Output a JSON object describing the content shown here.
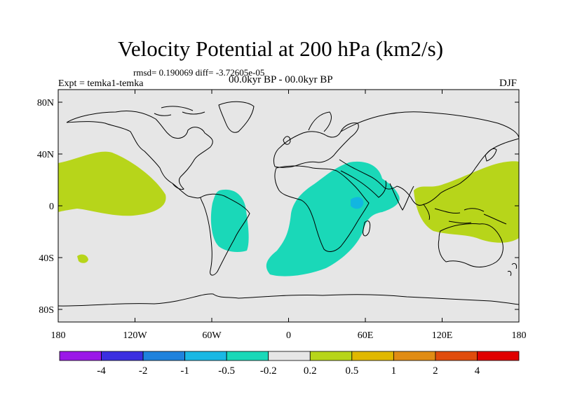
{
  "title": "Velocity Potential at 200 hPa (km2/s)",
  "stats": "rmsd= 0.190069 diff= -3.72605e-05",
  "experiment": "Expt = temka1-temka",
  "period": "00.0kyr BP - 00.0kyr BP",
  "season": "DJF",
  "colors": {
    "land_fill": "#e6e6e6",
    "coastline": "#000000",
    "positive_0_2": "#b7d51a",
    "negative_0_2": "#1ad8b8",
    "negative_0_5": "#12b6e0"
  },
  "map": {
    "y_ticks": [
      "80N",
      "40N",
      "0",
      "40S",
      "80S"
    ],
    "x_ticks": [
      "180",
      "120W",
      "60W",
      "0",
      "60E",
      "120E",
      "180"
    ]
  },
  "colorbar": {
    "colors": [
      "#9b18e8",
      "#3b2fe0",
      "#1f82dd",
      "#1ab8e4",
      "#1ad8b8",
      "#e6e6e6",
      "#b7d51a",
      "#e0b800",
      "#e08c14",
      "#e04c0c",
      "#e00000"
    ],
    "labels": [
      "-4",
      "-2",
      "-1",
      "-0.5",
      "-0.2",
      "0.2",
      "0.5",
      "1",
      "2",
      "4"
    ]
  }
}
